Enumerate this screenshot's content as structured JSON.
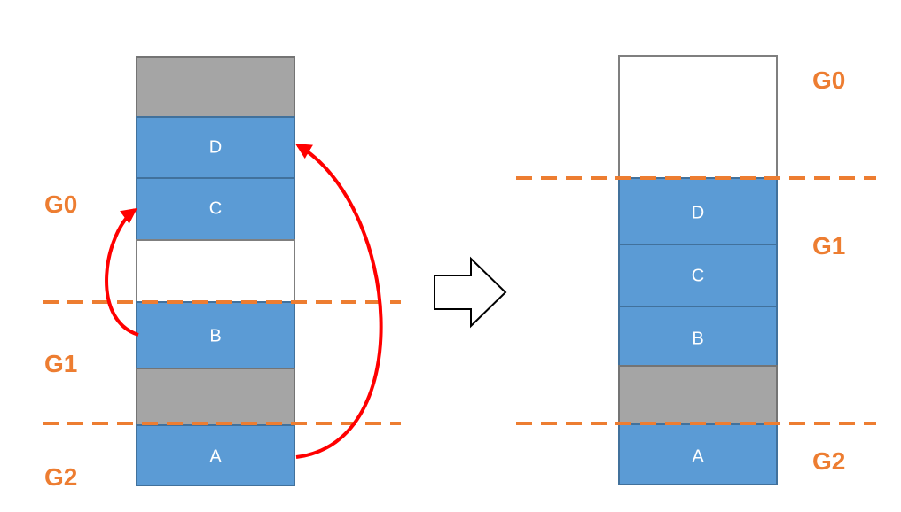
{
  "before": {
    "segments": [
      {
        "kind": "gray",
        "label": ""
      },
      {
        "kind": "object",
        "label": "D"
      },
      {
        "kind": "object",
        "label": "C"
      },
      {
        "kind": "free",
        "label": ""
      },
      {
        "kind": "object",
        "label": "B"
      },
      {
        "kind": "gray",
        "label": ""
      },
      {
        "kind": "object",
        "label": "A"
      }
    ],
    "generations": [
      "G0",
      "G1",
      "G2"
    ]
  },
  "after": {
    "segments": [
      {
        "kind": "free",
        "label": ""
      },
      {
        "kind": "object",
        "label": "D"
      },
      {
        "kind": "object",
        "label": "C"
      },
      {
        "kind": "object",
        "label": "B"
      },
      {
        "kind": "gray",
        "label": ""
      },
      {
        "kind": "object",
        "label": "A"
      }
    ],
    "generations": [
      "G0",
      "G1",
      "G2"
    ]
  },
  "colors": {
    "object": "#5b9bd5",
    "object_border": "#41719c",
    "gray": "#a5a5a5",
    "free": "#ffffff",
    "generation": "#ed7d31",
    "move_arrow": "#ff0000"
  }
}
